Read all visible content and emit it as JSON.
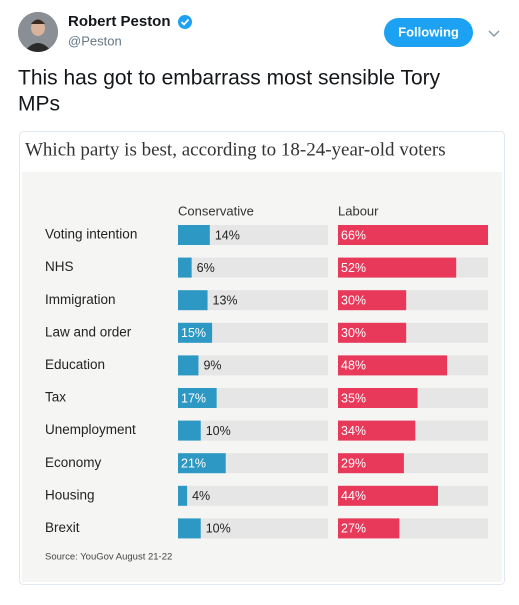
{
  "tweet": {
    "name": "Robert Peston",
    "handle": "@Peston",
    "button": "Following",
    "text": [
      "This has got to embarrass most sensible Tory",
      "MPs"
    ]
  },
  "chart_data": {
    "type": "bar",
    "title": "Which party is best, according to 18-24-year-old voters",
    "categories": [
      "Voting intention",
      "NHS",
      "Immigration",
      "Law and order",
      "Education",
      "Tax",
      "Unemployment",
      "Economy",
      "Housing",
      "Brexit"
    ],
    "series": [
      {
        "name": "Conservative",
        "color": "#2d98c3",
        "values": [
          14,
          6,
          13,
          15,
          9,
          17,
          10,
          21,
          4,
          10
        ],
        "value_labels": [
          "14%",
          "6%",
          "13%",
          "15%",
          "9%",
          "17%",
          "10%",
          "21%",
          "4%",
          "10%"
        ]
      },
      {
        "name": "Labour",
        "color": "#e8395a",
        "values": [
          66,
          52,
          30,
          30,
          48,
          35,
          34,
          29,
          44,
          27
        ],
        "value_labels": [
          "66%",
          "52%",
          "30%",
          "30%",
          "48%",
          "35%",
          "34%",
          "29%",
          "44%",
          "27%"
        ]
      }
    ],
    "source": "Source: YouGov August 21-22"
  }
}
